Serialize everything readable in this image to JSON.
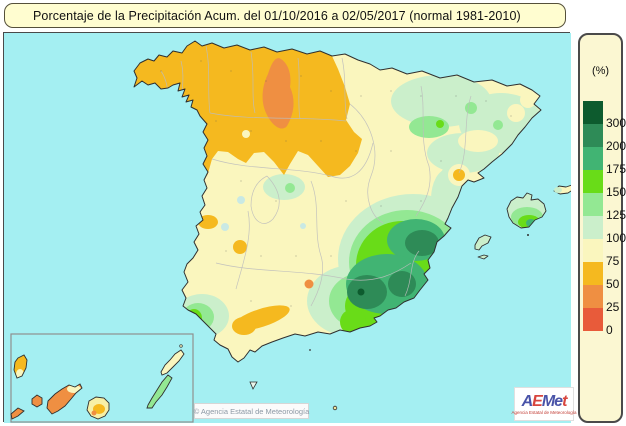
{
  "title": "Porcentaje de la Precipitación Acum. del 01/10/2016 a  02/05/2017  (normal 1981-2010)",
  "map": {
    "kind": "precipitation percentage isopleth map",
    "areas_shown": [
      "Peninsula",
      "Islas Baleares",
      "Islas Canarias (inset)"
    ],
    "copyright": "© Agencia Estatal de Meteorología"
  },
  "logo": {
    "text": "AEMet",
    "letters": [
      {
        "ch": "A",
        "color": "#4953a8"
      },
      {
        "ch": "E",
        "color": "#d8453e"
      },
      {
        "ch": "M",
        "color": "#4953a8"
      },
      {
        "ch": "e",
        "color": "#4953a8"
      },
      {
        "ch": "t",
        "color": "#d8453e"
      }
    ],
    "subtext": "Agencia Estatal de Meteorología"
  },
  "colors": {
    "sea": "#a4eff2",
    "title_yellow": "#fffdd0",
    "panel_yellow": "#fbf7d2",
    "coastline": "#2f2f2f",
    "province_border": "#bdbdbd",
    "inset_border": "#8f8f8f"
  },
  "legend": {
    "unit_label": "(%)",
    "thresholds": [
      300,
      200,
      175,
      150,
      125,
      100,
      75,
      50,
      25,
      0
    ],
    "bands": [
      {
        "key": "gt300",
        "label": ">300",
        "color": "#0d5b2e"
      },
      {
        "key": "200-300",
        "label": "200-300",
        "color": "#2e8b57"
      },
      {
        "key": "175-200",
        "label": "175-200",
        "color": "#41b473"
      },
      {
        "key": "150-175",
        "label": "150-175",
        "color": "#69dc18"
      },
      {
        "key": "125-150",
        "label": "125-150",
        "color": "#93e893"
      },
      {
        "key": "100-125",
        "label": "100-125",
        "color": "#cbefcb"
      },
      {
        "key": "75-100",
        "label": "75-100",
        "color": "#faf6be"
      },
      {
        "key": "50-75",
        "label": "50-75",
        "color": "#f5b91f"
      },
      {
        "key": "25-50",
        "label": "25-50",
        "color": "#ef8f42"
      },
      {
        "key": "0-25",
        "label": "0-25",
        "color": "#e85b3a"
      }
    ]
  }
}
